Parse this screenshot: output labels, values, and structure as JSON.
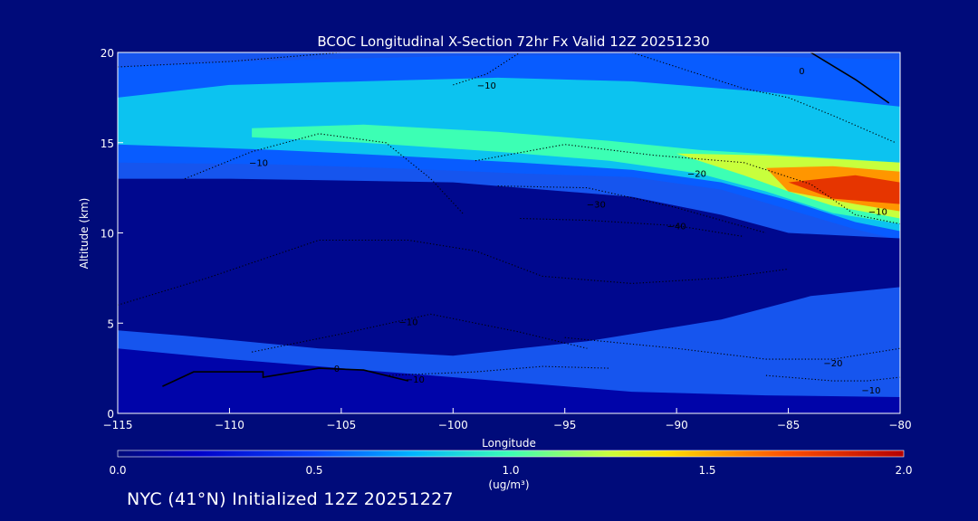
{
  "chart_data": {
    "type": "heatmap",
    "title": "BCOC Longitudinal X-Section 72hr  Fx Valid 12Z 20251230",
    "xlabel": "Longitude",
    "ylabel": "Altitude (km)",
    "xlim": [
      -115,
      -80
    ],
    "ylim": [
      0,
      20
    ],
    "x_ticks": [
      -115,
      -110,
      -105,
      -100,
      -95,
      -90,
      -85,
      -80
    ],
    "x_tick_labels": [
      "−115",
      "−110",
      "−105",
      "−100",
      "−95",
      "−90",
      "−85",
      "−80"
    ],
    "y_ticks": [
      0,
      5,
      10,
      15,
      20
    ],
    "y_tick_labels": [
      "0",
      "5",
      "10",
      "15",
      "20"
    ],
    "colorbar": {
      "min": 0.0,
      "max": 2.0,
      "ticks": [
        "0.0",
        "0.5",
        "1.0",
        "1.5",
        "2.0"
      ],
      "units": "(ug/m³)"
    },
    "field_layers": [
      {
        "level": 0.55,
        "points": [
          [
            -115,
            19.2
          ],
          [
            -110,
            19.5
          ],
          [
            -100,
            19.8
          ],
          [
            -90,
            19.9
          ],
          [
            -80,
            19.6
          ],
          [
            -80,
            9.6
          ],
          [
            -82,
            10.2
          ],
          [
            -85,
            11.3
          ],
          [
            -88,
            12.4
          ],
          [
            -92,
            13.1
          ],
          [
            -97,
            13.3
          ],
          [
            -103,
            13.6
          ],
          [
            -108,
            13.8
          ],
          [
            -115,
            13.9
          ]
        ]
      },
      {
        "level": 0.8,
        "points": [
          [
            -115,
            17.5
          ],
          [
            -110,
            18.2
          ],
          [
            -104,
            18.4
          ],
          [
            -98,
            18.6
          ],
          [
            -92,
            18.4
          ],
          [
            -86,
            17.8
          ],
          [
            -80,
            17.0
          ],
          [
            -80,
            10.1
          ],
          [
            -82,
            10.6
          ],
          [
            -85,
            11.8
          ],
          [
            -88,
            12.8
          ],
          [
            -92,
            13.5
          ],
          [
            -97,
            13.9
          ],
          [
            -103,
            14.3
          ],
          [
            -108,
            14.6
          ],
          [
            -115,
            14.9
          ]
        ]
      },
      {
        "level": 1.0,
        "points": [
          [
            -109,
            15.8
          ],
          [
            -104,
            16.0
          ],
          [
            -98,
            15.6
          ],
          [
            -93,
            15.1
          ],
          [
            -89,
            14.6
          ],
          [
            -85,
            14.3
          ],
          [
            -80,
            13.9
          ],
          [
            -80,
            10.5
          ],
          [
            -83,
            11.1
          ],
          [
            -86,
            12.3
          ],
          [
            -89,
            13.3
          ],
          [
            -93,
            14.0
          ],
          [
            -98,
            14.5
          ],
          [
            -104,
            15.0
          ],
          [
            -109,
            15.3
          ]
        ]
      },
      {
        "level": 1.25,
        "points": [
          [
            -90,
            14.4
          ],
          [
            -86,
            14.3
          ],
          [
            -80,
            13.9
          ],
          [
            -80,
            10.8
          ],
          [
            -83,
            11.5
          ],
          [
            -85,
            12.3
          ],
          [
            -87,
            13.2
          ]
        ]
      },
      {
        "level": 1.55,
        "points": [
          [
            -86,
            13.6
          ],
          [
            -83,
            13.7
          ],
          [
            -80,
            13.4
          ],
          [
            -80,
            11.2
          ],
          [
            -82,
            11.6
          ],
          [
            -85,
            12.3
          ]
        ]
      },
      {
        "level": 1.8,
        "points": [
          [
            -85,
            12.8
          ],
          [
            -82,
            13.2
          ],
          [
            -80,
            12.8
          ],
          [
            -80,
            11.6
          ],
          [
            -83,
            11.9
          ]
        ]
      }
    ],
    "dark_regions": [
      {
        "level": 0.05,
        "points": [
          [
            -115,
            13.0
          ],
          [
            -110,
            13.0
          ],
          [
            -100,
            12.8
          ],
          [
            -92,
            12.0
          ],
          [
            -88,
            11.0
          ],
          [
            -85,
            10.0
          ],
          [
            -80,
            9.7
          ],
          [
            -80,
            7.0
          ],
          [
            -84,
            6.5
          ],
          [
            -88,
            5.2
          ],
          [
            -94,
            4.0
          ],
          [
            -100,
            3.2
          ],
          [
            -106,
            3.6
          ],
          [
            -112,
            4.3
          ],
          [
            -115,
            4.6
          ]
        ]
      },
      {
        "level": 0.12,
        "points": [
          [
            -115,
            3.6
          ],
          [
            -110,
            3.0
          ],
          [
            -104,
            2.4
          ],
          [
            -98,
            1.8
          ],
          [
            -92,
            1.2
          ],
          [
            -86,
            1.0
          ],
          [
            -80,
            0.9
          ],
          [
            -80,
            0
          ],
          [
            -115,
            0
          ]
        ]
      }
    ],
    "contours": [
      {
        "label": "0",
        "style": "solid",
        "points": [
          [
            -84,
            20
          ],
          [
            -82,
            18.5
          ],
          [
            -80.5,
            17.2
          ]
        ]
      },
      {
        "label": "0",
        "style": "solid",
        "points": [
          [
            -113,
            1.5
          ],
          [
            -111.6,
            2.3
          ],
          [
            -108.5,
            2.3
          ],
          [
            -108.5,
            2.0
          ],
          [
            -106,
            2.5
          ],
          [
            -104,
            2.4
          ],
          [
            -102,
            1.8
          ]
        ]
      },
      {
        "label": "−10",
        "style": "dotted",
        "points": [
          [
            -115,
            19.2
          ],
          [
            -110,
            19.5
          ],
          [
            -105,
            20.0
          ]
        ]
      },
      {
        "label": "−10",
        "style": "dotted",
        "points": [
          [
            -100,
            18.2
          ],
          [
            -98.5,
            18.8
          ],
          [
            -97,
            20
          ]
        ]
      },
      {
        "label": "−10",
        "style": "dotted",
        "points": [
          [
            -112,
            13.0
          ],
          [
            -109,
            14.5
          ],
          [
            -106,
            15.5
          ],
          [
            -103,
            15.0
          ],
          [
            -101,
            13.0
          ],
          [
            -99.5,
            11.0
          ]
        ]
      },
      {
        "label": "−10",
        "style": "dotted",
        "points": [
          [
            -92,
            20
          ],
          [
            -89.5,
            19
          ],
          [
            -87,
            18
          ],
          [
            -85,
            17.5
          ],
          [
            -83,
            16.5
          ],
          [
            -80.2,
            15
          ]
        ]
      },
      {
        "label": "−20",
        "style": "dotted",
        "points": [
          [
            -99,
            14.0
          ],
          [
            -95,
            14.9
          ],
          [
            -91,
            14.3
          ],
          [
            -87,
            13.9
          ],
          [
            -84,
            12.7
          ],
          [
            -82,
            11.0
          ],
          [
            -80,
            10.5
          ]
        ]
      },
      {
        "label": "−30",
        "style": "dotted",
        "points": [
          [
            -98,
            12.6
          ],
          [
            -94,
            12.5
          ],
          [
            -90,
            11.4
          ],
          [
            -86,
            10.0
          ]
        ]
      },
      {
        "label": "−40",
        "style": "dotted",
        "points": [
          [
            -97,
            10.8
          ],
          [
            -94,
            10.7
          ],
          [
            -90,
            10.4
          ],
          [
            -87,
            9.8
          ]
        ]
      },
      {
        "label": "−10",
        "style": "dotted",
        "points": [
          [
            -115,
            6.0
          ],
          [
            -111,
            7.5
          ],
          [
            -106,
            9.6
          ],
          [
            -102,
            9.6
          ],
          [
            -99,
            9.0
          ],
          [
            -96,
            7.6
          ],
          [
            -92,
            7.2
          ],
          [
            -88,
            7.5
          ],
          [
            -85,
            8.0
          ]
        ]
      },
      {
        "label": "−10",
        "style": "dotted",
        "points": [
          [
            -109,
            3.4
          ],
          [
            -105,
            4.4
          ],
          [
            -101,
            5.5
          ],
          [
            -97,
            4.5
          ],
          [
            -94,
            3.6
          ]
        ]
      },
      {
        "label": "−10",
        "style": "dotted",
        "points": [
          [
            -103,
            2.1
          ],
          [
            -99,
            2.3
          ],
          [
            -96,
            2.6
          ],
          [
            -93,
            2.5
          ]
        ]
      },
      {
        "label": "−20",
        "style": "dotted",
        "points": [
          [
            -95,
            4.2
          ],
          [
            -90,
            3.6
          ],
          [
            -86,
            3.0
          ],
          [
            -83,
            3.0
          ],
          [
            -80,
            3.6
          ]
        ]
      },
      {
        "label": "−10",
        "style": "dotted",
        "points": [
          [
            -86,
            2.1
          ],
          [
            -83,
            1.8
          ],
          [
            -81.5,
            1.8
          ],
          [
            -80,
            2.0
          ]
        ]
      }
    ],
    "contour_labels": [
      {
        "text": "−10",
        "x": -98.5,
        "y": 18.2
      },
      {
        "text": "−10",
        "x": -108.7,
        "y": 13.9
      },
      {
        "text": "−20",
        "x": -89.1,
        "y": 13.3
      },
      {
        "text": "−30",
        "x": -93.6,
        "y": 11.6
      },
      {
        "text": "−40",
        "x": -90.0,
        "y": 10.4
      },
      {
        "text": "−10",
        "x": -81.0,
        "y": 11.2
      },
      {
        "text": "−20",
        "x": -83.0,
        "y": 2.8
      },
      {
        "text": "−10",
        "x": -81.3,
        "y": 1.3
      },
      {
        "text": "−10",
        "x": -101.7,
        "y": 1.9
      },
      {
        "text": "−10",
        "x": -102.0,
        "y": 5.1
      },
      {
        "text": "0",
        "x": -105.2,
        "y": 2.5
      },
      {
        "text": "0",
        "x": -84.4,
        "y": 19.0
      }
    ]
  },
  "footer": "NYC (41°N) Initialized 12Z 20251227"
}
